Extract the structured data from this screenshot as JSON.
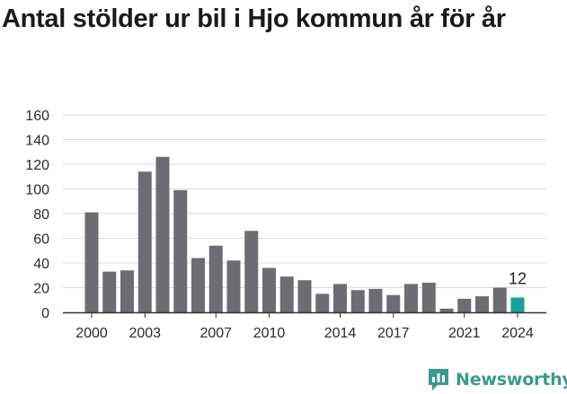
{
  "title": "Antal stölder ur bil i Hjo kommun år för år",
  "brand": {
    "name": "Newsworthy",
    "color": "#3a9a8c"
  },
  "colors": {
    "bar": "#6d6c72",
    "highlight": "#1aa196",
    "grid": "#d9d9d9",
    "axis": "#333333"
  },
  "chart_data": {
    "type": "bar",
    "title": "Antal stölder ur bil i Hjo kommun år för år",
    "xlabel": "",
    "ylabel": "",
    "categories": [
      "2000",
      "2001",
      "2002",
      "2003",
      "2004",
      "2005",
      "2006",
      "2007",
      "2008",
      "2009",
      "2010",
      "2011",
      "2012",
      "2013",
      "2014",
      "2015",
      "2016",
      "2017",
      "2018",
      "2019",
      "2020",
      "2021",
      "2022",
      "2023",
      "2024"
    ],
    "values": [
      81,
      33,
      34,
      114,
      126,
      99,
      44,
      54,
      42,
      66,
      36,
      29,
      26,
      15,
      23,
      18,
      19,
      14,
      23,
      24,
      3,
      11,
      13,
      20,
      12
    ],
    "x_tick_labels": [
      "2000",
      "2003",
      "2007",
      "2010",
      "2014",
      "2017",
      "2021",
      "2024"
    ],
    "y_ticks": [
      0,
      20,
      40,
      60,
      80,
      100,
      120,
      140,
      160
    ],
    "ylim": [
      0,
      160
    ],
    "grid": true,
    "legend": "none",
    "highlight_category": "2024",
    "highlight_label": "12"
  }
}
